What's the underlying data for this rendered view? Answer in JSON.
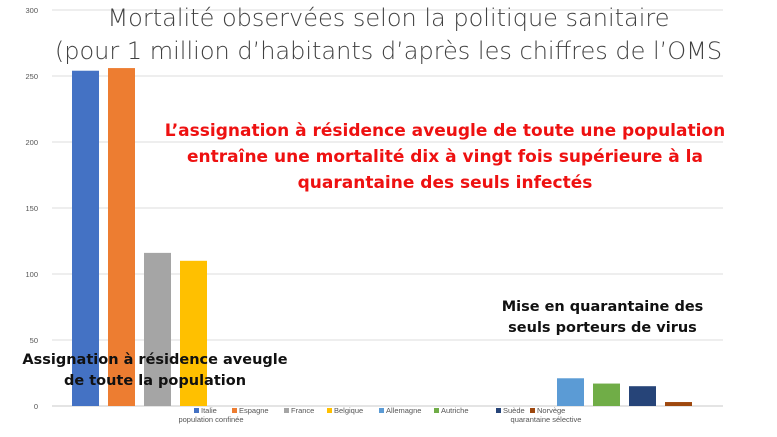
{
  "chart_data": {
    "type": "bar",
    "title": "Mortalité observées selon la politique sanitaire",
    "subtitle": "(pour 1 million d’habitants d’après les chiffres de l’OMS",
    "ylim": [
      0,
      300
    ],
    "yticks": [
      0,
      50,
      100,
      150,
      200,
      250,
      300
    ],
    "grid": true,
    "legend_position": "bottom",
    "groups": [
      {
        "label": "population confinée"
      },
      {
        "label": "quarantaine sélective"
      }
    ],
    "series": [
      {
        "name": "Italie",
        "color": "#4472c4",
        "value": 254,
        "group": 0
      },
      {
        "name": "Espagne",
        "color": "#ed7d31",
        "value": 256,
        "group": 0
      },
      {
        "name": "France",
        "color": "#a5a5a5",
        "value": 116,
        "group": 0
      },
      {
        "name": "Belgique",
        "color": "#ffc000",
        "value": 110,
        "group": 0
      },
      {
        "name": "Allemagne",
        "color": "#5b9bd5",
        "value": 21,
        "group": 1
      },
      {
        "name": "Autriche",
        "color": "#70ad47",
        "value": 17,
        "group": 1
      },
      {
        "name": "Suède",
        "color": "#264478",
        "value": 15,
        "group": 1
      },
      {
        "name": "Norvège",
        "color": "#9e480e",
        "value": 3,
        "group": 1
      }
    ],
    "annotations": {
      "main_claim": [
        "L’assignation à résidence aveugle de toute une population",
        "entraîne une mortalité dix à vingt fois supérieure à la",
        "quarantaine des seuls infectés"
      ],
      "selective": [
        "Mise en quarantaine des",
        "seuls porteurs de virus"
      ],
      "confined": [
        "Assignation à résidence aveugle",
        "de toute la population"
      ]
    }
  }
}
